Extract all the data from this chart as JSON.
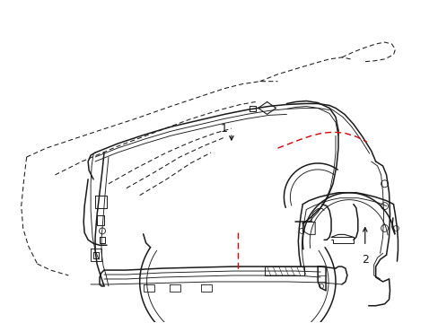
{
  "bg_color": "#ffffff",
  "line_color": "#1a1a1a",
  "red_color": "#dd0000",
  "label_1": "1",
  "label_2": "2",
  "figsize": [
    4.89,
    3.6
  ],
  "dpi": 100,
  "lw_main": 1.1,
  "lw_thin": 0.65,
  "lw_dash": 0.75
}
